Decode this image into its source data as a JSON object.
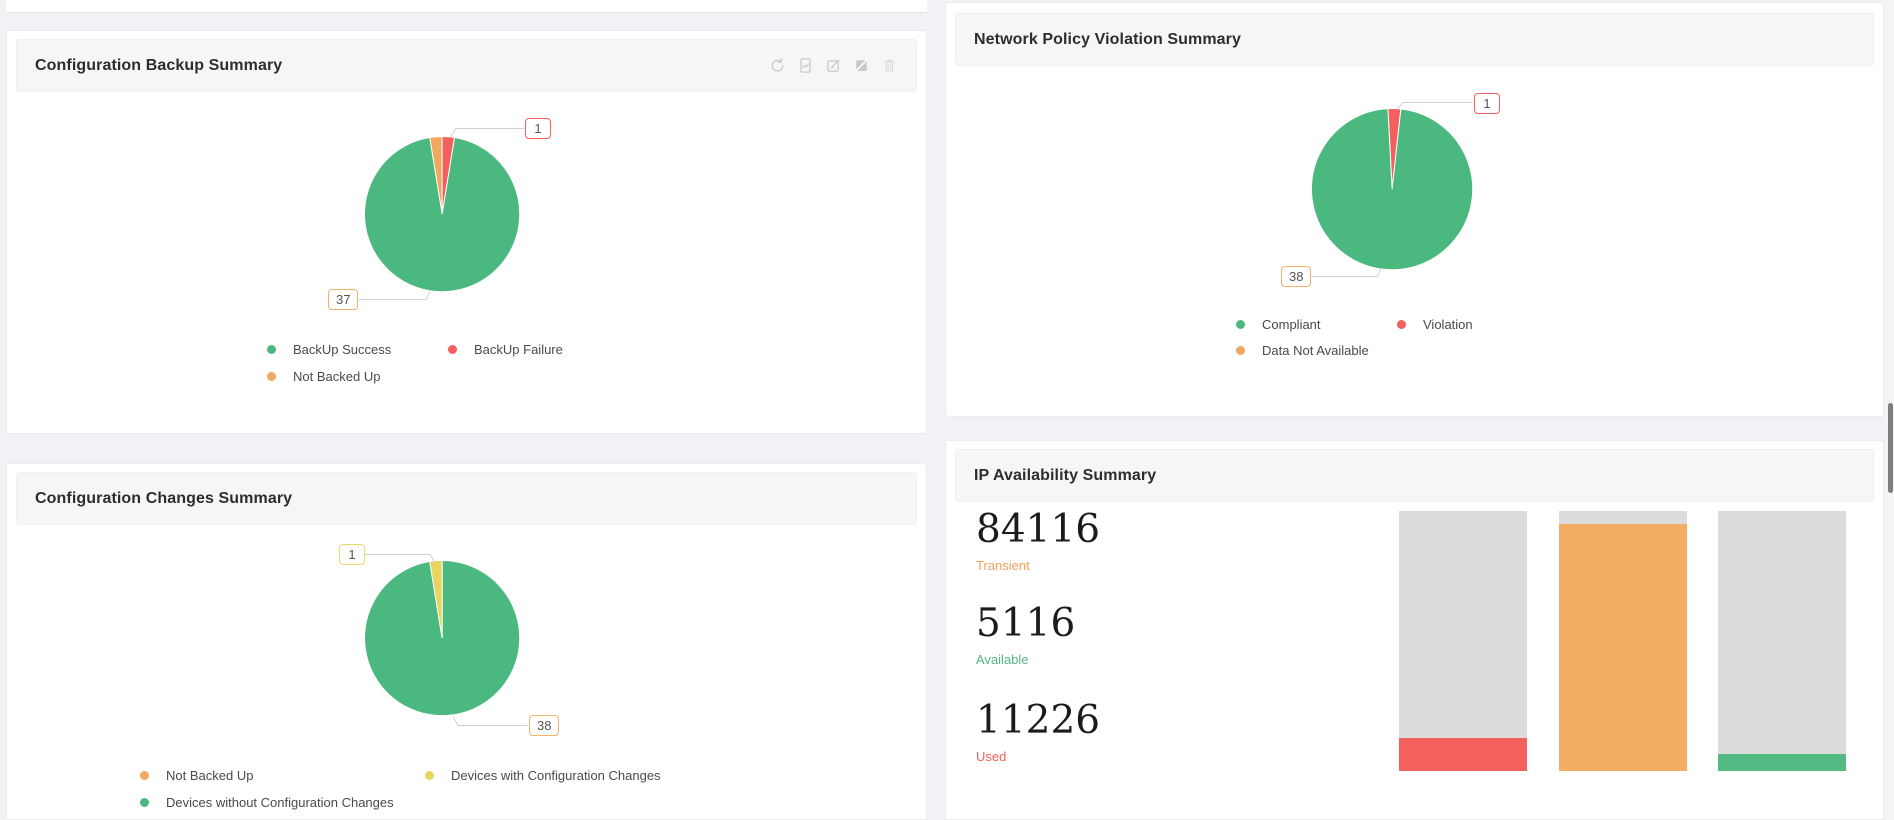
{
  "page": {
    "background": "#f1f2f5"
  },
  "widget_toolbar": {
    "icons": [
      "refresh-icon",
      "report-icon",
      "edit-icon",
      "diagonal-square-icon",
      "delete-icon"
    ]
  },
  "chart_data": [
    {
      "id": "configuration-backup-summary",
      "title": "Configuration Backup Summary",
      "type": "pie",
      "slices": [
        {
          "label": "Not Backed Up",
          "value": 1,
          "color": "#f2a75f"
        },
        {
          "label": "BackUp Failure",
          "value": 1,
          "color": "#f4605e"
        },
        {
          "label": "BackUp Success",
          "value": 37,
          "color": "#4bb87f"
        }
      ],
      "callouts": [
        {
          "text": "1",
          "border": "#f4605e"
        },
        {
          "text": "37",
          "border": "#f1b26a"
        }
      ],
      "legend": [
        {
          "label": "BackUp Success",
          "color": "#4bb87f"
        },
        {
          "label": "BackUp Failure",
          "color": "#f4605e"
        },
        {
          "label": "Not Backed Up",
          "color": "#f2a75f"
        }
      ]
    },
    {
      "id": "network-policy-violation-summary",
      "title": "Network Policy Violation Summary",
      "type": "pie",
      "slices": [
        {
          "label": "Violation",
          "value": 1,
          "color": "#f4605e"
        },
        {
          "label": "Compliant",
          "value": 38,
          "color": "#4bb87f"
        },
        {
          "label": "Data Not Available",
          "value": 0,
          "color": "#f2a75f"
        }
      ],
      "callouts": [
        {
          "text": "1",
          "border": "#f4605e"
        },
        {
          "text": "38",
          "border": "#f1b26a"
        }
      ],
      "legend": [
        {
          "label": "Compliant",
          "color": "#4bb87f"
        },
        {
          "label": "Violation",
          "color": "#f4605e"
        },
        {
          "label": "Data Not Available",
          "color": "#f2a75f"
        }
      ]
    },
    {
      "id": "configuration-changes-summary",
      "title": "Configuration Changes Summary",
      "type": "pie",
      "slices": [
        {
          "label": "Devices without Configuration Changes",
          "value": 38,
          "color": "#4bb87f"
        },
        {
          "label": "Devices with Configuration Changes",
          "value": 1,
          "color": "#e8d55f"
        },
        {
          "label": "Not Backed Up",
          "value": 0,
          "color": "#f2a75f"
        }
      ],
      "callouts": [
        {
          "text": "1",
          "border": "#e9d86d"
        },
        {
          "text": "38",
          "border": "#f1b26a"
        }
      ],
      "legend": [
        {
          "label": "Not Backed Up",
          "color": "#f2a75f"
        },
        {
          "label": "Devices with Configuration Changes",
          "color": "#e8d55f"
        },
        {
          "label": "Devices without Configuration Changes",
          "color": "#4bb87f"
        }
      ]
    },
    {
      "id": "ip-availability-summary",
      "title": "IP Availability Summary",
      "type": "bar",
      "stats": [
        {
          "label": "Transient",
          "value": "84116",
          "color": "#f0a158"
        },
        {
          "label": "Available",
          "value": "5116",
          "color": "#56b786"
        },
        {
          "label": "Used",
          "value": "11226",
          "color": "#f0625e"
        }
      ],
      "bars": [
        {
          "name": "Used",
          "fill_color": "#f4605e",
          "fill_pct": 12.7,
          "track": "#dcdcdc"
        },
        {
          "name": "Transient",
          "fill_color": "#f3ae64",
          "fill_pct": 95,
          "track": "#dcdcdc"
        },
        {
          "name": "Available",
          "fill_color": "#53ba83",
          "fill_pct": 6.5,
          "track": "#dcdcdc"
        }
      ]
    }
  ]
}
